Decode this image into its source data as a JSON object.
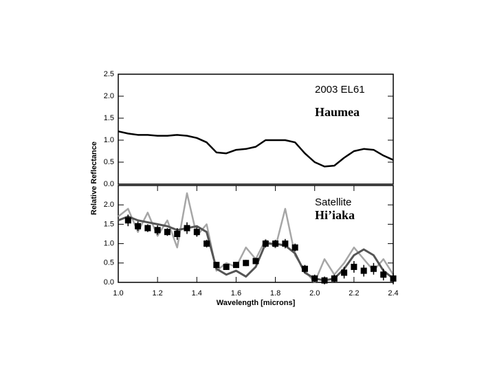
{
  "chart_data": [
    {
      "type": "line",
      "annotations": [
        {
          "text": "2003 EL61",
          "color": "#000000"
        },
        {
          "text": "Haumea",
          "color": "#cc0000"
        }
      ],
      "x": [
        1.0,
        1.05,
        1.1,
        1.15,
        1.2,
        1.25,
        1.3,
        1.35,
        1.4,
        1.45,
        1.5,
        1.55,
        1.6,
        1.65,
        1.7,
        1.75,
        1.8,
        1.85,
        1.9,
        1.95,
        2.0,
        2.05,
        2.1,
        2.15,
        2.2,
        2.25,
        2.3,
        2.35,
        2.4
      ],
      "series": [
        {
          "style": "line",
          "color": "#000000",
          "width": 2.5,
          "values": [
            1.2,
            1.15,
            1.12,
            1.12,
            1.1,
            1.1,
            1.12,
            1.1,
            1.05,
            0.95,
            0.72,
            0.7,
            0.78,
            0.8,
            0.85,
            1.0,
            1.0,
            1.0,
            0.95,
            0.7,
            0.5,
            0.4,
            0.42,
            0.6,
            0.75,
            0.8,
            0.78,
            0.65,
            0.55
          ]
        }
      ],
      "xlim": [
        1.0,
        2.4
      ],
      "ylim": [
        0,
        2.5
      ],
      "yticks": [
        {
          "value": 0,
          "label": "0.0"
        },
        0.5,
        {
          "value": 1,
          "label": "1.0"
        },
        1.5,
        {
          "value": 2,
          "label": "2.0"
        },
        2.5
      ]
    },
    {
      "type": "line",
      "annotations": [
        {
          "text": "Satellite",
          "color": "#000000"
        },
        {
          "text": "Hi’iaka",
          "color": "#cc0000"
        }
      ],
      "xlabel": "Wavelength [microns]",
      "ylabel": "Relative Reflectance",
      "x": [
        1.0,
        1.05,
        1.1,
        1.15,
        1.2,
        1.25,
        1.3,
        1.35,
        1.4,
        1.45,
        1.5,
        1.55,
        1.6,
        1.65,
        1.7,
        1.75,
        1.8,
        1.85,
        1.9,
        1.95,
        2.0,
        2.05,
        2.1,
        2.15,
        2.2,
        2.25,
        2.3,
        2.35,
        2.4
      ],
      "series": [
        {
          "style": "line",
          "color": "#a6a6a6",
          "width": 2.5,
          "values": [
            1.7,
            1.9,
            1.3,
            1.8,
            1.2,
            1.6,
            0.9,
            2.3,
            1.2,
            1.5,
            0.3,
            0.5,
            0.4,
            0.9,
            0.6,
            1.1,
            0.9,
            1.9,
            0.7,
            0.3,
            0.0,
            0.6,
            0.2,
            0.5,
            0.9,
            0.6,
            0.3,
            0.6,
            0.2
          ]
        },
        {
          "style": "line",
          "color": "#555555",
          "width": 3,
          "values": [
            1.6,
            1.7,
            1.6,
            1.55,
            1.5,
            1.45,
            1.35,
            1.4,
            1.45,
            1.3,
            0.35,
            0.2,
            0.3,
            0.15,
            0.4,
            1.0,
            1.0,
            0.95,
            0.75,
            0.25,
            0.1,
            0.05,
            0.1,
            0.35,
            0.7,
            0.85,
            0.7,
            0.3,
            0.1
          ]
        },
        {
          "style": "points",
          "color": "#000000",
          "x": [
            1.05,
            1.1,
            1.15,
            1.2,
            1.25,
            1.3,
            1.35,
            1.4,
            1.45,
            1.5,
            1.55,
            1.6,
            1.65,
            1.7,
            1.75,
            1.8,
            1.85,
            1.9,
            1.95,
            2.0,
            2.05,
            2.1,
            2.15,
            2.2,
            2.25,
            2.3,
            2.35,
            2.4
          ],
          "values": [
            1.6,
            1.45,
            1.4,
            1.35,
            1.3,
            1.25,
            1.4,
            1.3,
            1.0,
            0.45,
            0.4,
            0.45,
            0.5,
            0.55,
            1.0,
            1.0,
            1.0,
            0.9,
            0.35,
            0.1,
            0.05,
            0.1,
            0.25,
            0.4,
            0.3,
            0.35,
            0.2,
            0.1
          ],
          "errors": [
            0.15,
            0.12,
            0.1,
            0.12,
            0.1,
            0.15,
            0.15,
            0.12,
            0.1,
            0.08,
            0.08,
            0.08,
            0.08,
            0.08,
            0.1,
            0.1,
            0.12,
            0.1,
            0.1,
            0.1,
            0.1,
            0.1,
            0.15,
            0.15,
            0.15,
            0.15,
            0.15,
            0.15
          ]
        }
      ],
      "xlim": [
        1.0,
        2.4
      ],
      "xticks": [
        {
          "value": 1,
          "label": "1.0"
        },
        1.2,
        1.4,
        1.6,
        1.8,
        {
          "value": 2,
          "label": "2.0"
        },
        2.2,
        2.4
      ],
      "ylim": [
        0,
        2.5
      ],
      "yticks": [
        {
          "value": 0,
          "label": "0.0"
        },
        0.5,
        {
          "value": 1,
          "label": "1.0"
        },
        1.5,
        {
          "value": 2,
          "label": "2.0"
        }
      ]
    }
  ]
}
